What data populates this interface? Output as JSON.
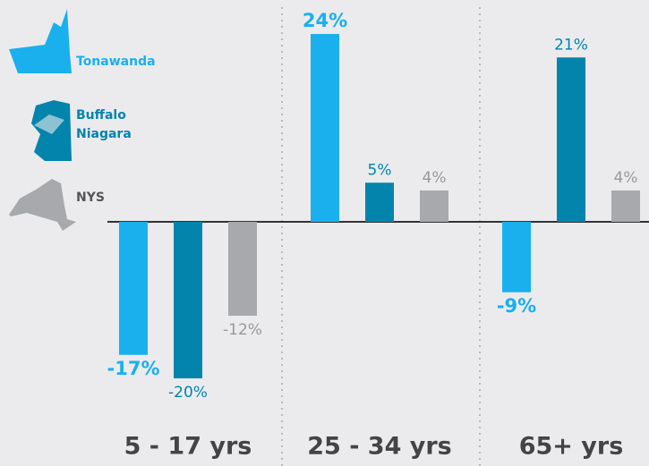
{
  "chart_data": {
    "type": "bar",
    "categories": [
      "5 - 17 yrs",
      "25 - 34 yrs",
      "65+ yrs"
    ],
    "series": [
      {
        "name": "Tonawanda",
        "color": "#1ab0ee",
        "values": [
          -17,
          24,
          -9
        ],
        "value_labels": [
          "-17%",
          "24%",
          "-9%"
        ]
      },
      {
        "name": "Buffalo Niagara",
        "color": "#0284ad",
        "values": [
          -20,
          5,
          21
        ],
        "value_labels": [
          "-20%",
          "5%",
          "21%"
        ]
      },
      {
        "name": "NYS",
        "color": "#a7a9ac",
        "values": [
          -12,
          4,
          4
        ],
        "value_labels": [
          "-12%",
          "4%",
          "4%"
        ]
      }
    ]
  }
}
